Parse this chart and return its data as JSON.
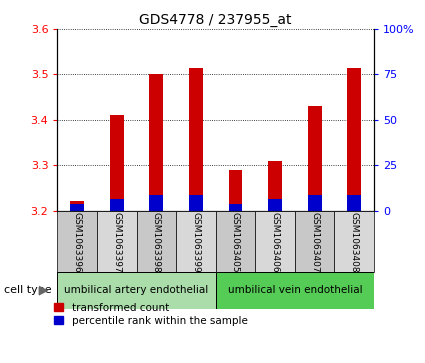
{
  "title": "GDS4778 / 237955_at",
  "samples": [
    "GSM1063396",
    "GSM1063397",
    "GSM1063398",
    "GSM1063399",
    "GSM1063405",
    "GSM1063406",
    "GSM1063407",
    "GSM1063408"
  ],
  "red_values": [
    3.22,
    3.41,
    3.5,
    3.515,
    3.29,
    3.31,
    3.43,
    3.515
  ],
  "blue_values": [
    3.215,
    3.225,
    3.235,
    3.235,
    3.215,
    3.225,
    3.235,
    3.235
  ],
  "ylim_left": [
    3.2,
    3.6
  ],
  "ylim_right": [
    0,
    100
  ],
  "yticks_left": [
    3.2,
    3.3,
    3.4,
    3.5,
    3.6
  ],
  "yticks_right": [
    0,
    25,
    50,
    75,
    100
  ],
  "ytick_labels_right": [
    "0",
    "25",
    "50",
    "75",
    "100%"
  ],
  "bar_width": 0.35,
  "group1_label": "umbilical artery endothelial",
  "group2_label": "umbilical vein endothelial",
  "group1_color": "#aaddaa",
  "group2_color": "#55cc55",
  "cell_type_label": "cell type",
  "legend_red": "transformed count",
  "legend_blue": "percentile rank within the sample",
  "red_color": "#cc0000",
  "blue_color": "#0000cc",
  "sample_bg_odd": "#c8c8c8",
  "sample_bg_even": "#d8d8d8",
  "plot_bg_color": "#ffffff"
}
